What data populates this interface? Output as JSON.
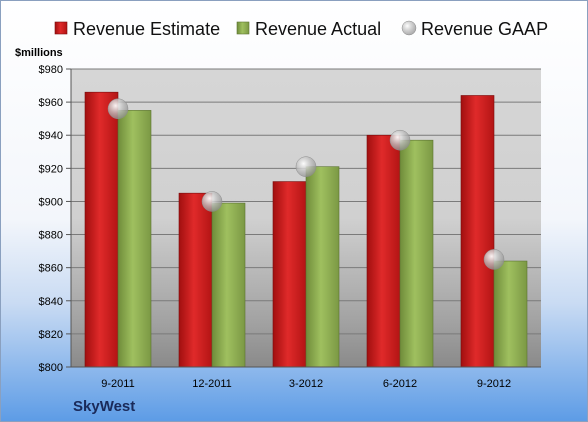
{
  "chart_data": {
    "type": "bar",
    "title": "",
    "ylabel": "$millions",
    "xlabel": "",
    "ylim": [
      800,
      980
    ],
    "y_ticks": [
      "$800",
      "$820",
      "$840",
      "$860",
      "$880",
      "$900",
      "$920",
      "$940",
      "$960",
      "$980"
    ],
    "categories": [
      "9-2011",
      "12-2011",
      "3-2012",
      "6-2012",
      "9-2012"
    ],
    "series": [
      {
        "name": "Revenue Estimate",
        "kind": "bar",
        "color": "#cc1d1d",
        "values": [
          966,
          905,
          912,
          940,
          964
        ]
      },
      {
        "name": "Revenue Actual",
        "kind": "bar",
        "color": "#8aab4e",
        "values": [
          955,
          899,
          921,
          937,
          864
        ]
      },
      {
        "name": "Revenue GAAP",
        "kind": "marker",
        "color": "#b8b8b8",
        "values": [
          956,
          900,
          921,
          937,
          865
        ]
      }
    ],
    "legend_position": "top",
    "grid": true
  },
  "company": "SkyWest"
}
